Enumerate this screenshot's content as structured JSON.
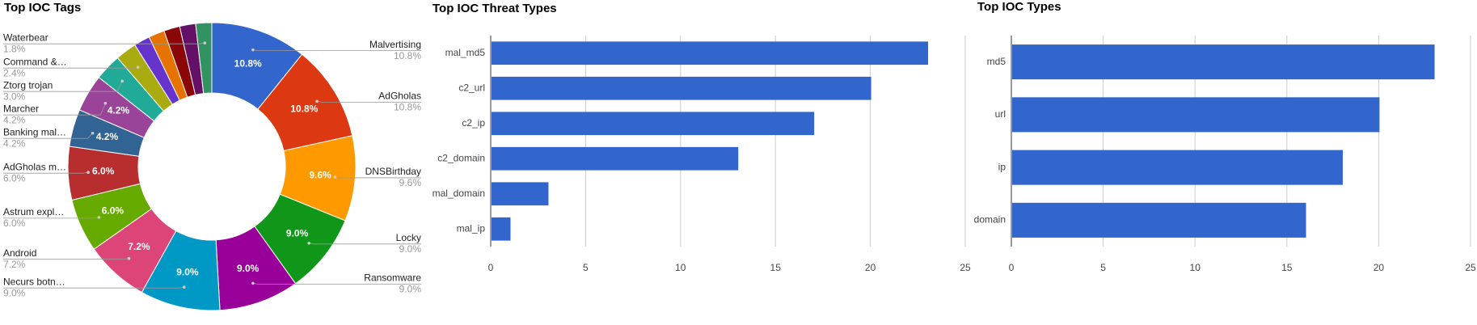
{
  "chart_data": [
    {
      "type": "pie",
      "title": "Top IOC Tags",
      "categories": [
        "Malvertising",
        "AdGholas",
        "DNSBirthday",
        "Locky",
        "Ransomware",
        "Necurs botn…",
        "Android",
        "Astrum expl…",
        "AdGholas m…",
        "Banking mal…",
        "Marcher",
        "Ztorg trojan",
        "Command &…",
        null,
        null,
        null,
        null,
        "Waterbear"
      ],
      "values": [
        10.8,
        10.8,
        9.6,
        9.0,
        9.0,
        9.0,
        7.2,
        6.0,
        6.0,
        4.2,
        4.2,
        3.0,
        2.4,
        1.8,
        1.8,
        1.8,
        1.8,
        1.8
      ],
      "value_labels": [
        "10.8%",
        "10.8%",
        "9.6%",
        "9.0%",
        "9.0%",
        "9.0%",
        "7.2%",
        "6.0%",
        "6.0%",
        "4.2%",
        "4.2%",
        "3.0%",
        "2.4%",
        null,
        null,
        null,
        null,
        "1.8%"
      ],
      "colors": [
        "#3366cc",
        "#dc3912",
        "#ff9900",
        "#109618",
        "#990099",
        "#0099c6",
        "#dd4477",
        "#66aa00",
        "#b82e2e",
        "#316395",
        "#994499",
        "#22aa99",
        "#aaaa11",
        "#6633cc",
        "#e67300",
        "#8b0707",
        "#651067",
        "#329262"
      ]
    },
    {
      "type": "bar",
      "title": "Top IOC Threat Types",
      "categories": [
        "mal_md5",
        "c2_url",
        "c2_ip",
        "c2_domain",
        "mal_domain",
        "mal_ip"
      ],
      "values": [
        23,
        20,
        17,
        13,
        3,
        1
      ],
      "color": "#3366cc",
      "xlim": [
        0,
        25
      ],
      "xticks": [
        0,
        5,
        10,
        15,
        20,
        25
      ],
      "grid": true
    },
    {
      "type": "bar",
      "title": "Top IOC Types",
      "categories": [
        "md5",
        "url",
        "ip",
        "domain"
      ],
      "values": [
        23,
        20,
        18,
        16
      ],
      "color": "#3366cc",
      "xlim": [
        0,
        25
      ],
      "xticks": [
        0,
        5,
        10,
        15,
        20,
        25
      ],
      "grid": true
    }
  ]
}
